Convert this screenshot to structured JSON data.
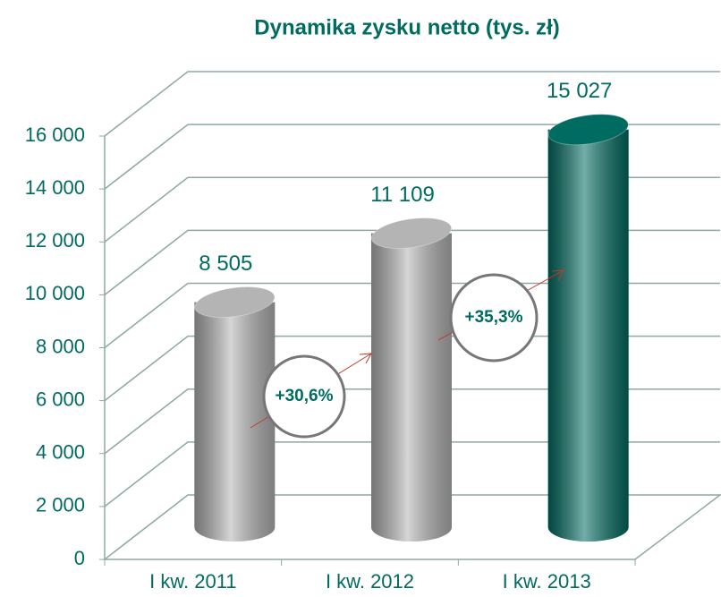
{
  "chart_data": {
    "type": "bar",
    "title": "Dynamika zysku netto (tys. zł)",
    "categories": [
      "I kw. 2011",
      "I kw. 2012",
      "I kw. 2013"
    ],
    "values": [
      8505,
      11109,
      15027
    ],
    "value_labels": [
      "8 505",
      "11 109",
      "15 027"
    ],
    "colors": [
      "#b4b4b4",
      "#b4b4b4",
      "#006b60"
    ],
    "ylim": [
      0,
      16000
    ],
    "yticks": [
      0,
      {
        "value": 2000,
        "label": "2 000"
      },
      {
        "value": 4000,
        "label": "4 000"
      },
      {
        "value": 6000,
        "label": "6 000"
      },
      {
        "value": 8000,
        "label": "8 000"
      },
      {
        "value": 10000,
        "label": "10 000"
      },
      {
        "value": 12000,
        "label": "12 000"
      },
      {
        "value": 14000,
        "label": "14 000"
      },
      {
        "value": 16000,
        "label": "16 000"
      }
    ],
    "grid": true,
    "annotations": [
      "+30,6%",
      "+35,3%"
    ]
  }
}
